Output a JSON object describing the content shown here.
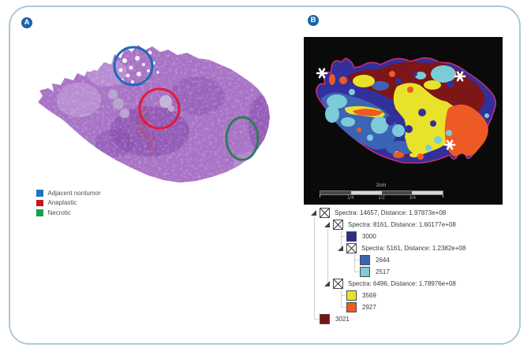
{
  "panel_a": {
    "badge": "A",
    "image_description": "H&E histology section",
    "legend": [
      {
        "label": "Adjacent nontumor",
        "color": "#1B75BC"
      },
      {
        "label": "Anaplastic",
        "color": "#D01027"
      },
      {
        "label": "Necrotic",
        "color": "#12A150"
      }
    ]
  },
  "panel_b": {
    "badge": "B",
    "asterisk_glyph": "*",
    "scale_bar": {
      "length_label": "2cm",
      "ticks": [
        "1/4",
        "1/2",
        "3/4"
      ]
    },
    "tree": [
      {
        "type": "node",
        "level": 0,
        "label": "Spectra: 14657, Distance: 1.97873e+08"
      },
      {
        "type": "node",
        "level": 1,
        "label": "Spectra: 8161, Distance: 1.60177e+08"
      },
      {
        "type": "leaf",
        "level": 2,
        "color": "#2B2E8C",
        "label": "3000"
      },
      {
        "type": "node",
        "level": 2,
        "label": "Spectra: 5161, Distance: 1.2382e+08"
      },
      {
        "type": "leaf",
        "level": 3,
        "color": "#3D63B5",
        "label": "2644"
      },
      {
        "type": "leaf",
        "level": 3,
        "color": "#7CCBD9",
        "label": "2517"
      },
      {
        "type": "node",
        "level": 1,
        "label": "Spectra: 6496, Distance: 1.78976e+08"
      },
      {
        "type": "leaf",
        "level": 2,
        "color": "#E8E32A",
        "label": "3569"
      },
      {
        "type": "leaf",
        "level": 2,
        "color": "#EE5A25",
        "label": "2927"
      },
      {
        "type": "leaf",
        "level": 0,
        "color": "#7E1414",
        "label": "3021"
      }
    ]
  },
  "colors": {
    "frame_border": "#AFC7D6",
    "badge_bg": "#1A63A8",
    "circle_blue": "#1C6CB4",
    "circle_red": "#E51937",
    "circle_green": "#2E7D57",
    "map_navy": "#32309B",
    "map_blue": "#3D63B5",
    "map_cyan": "#7CCBD9",
    "map_yellow": "#E8E32A",
    "map_orange": "#EE5A25",
    "map_maroon": "#7E1516",
    "map_outline": "#C22E79",
    "tissue_base": "#A873C6",
    "tissue_light": "#C9ABE0",
    "tissue_dark": "#8146AB"
  }
}
